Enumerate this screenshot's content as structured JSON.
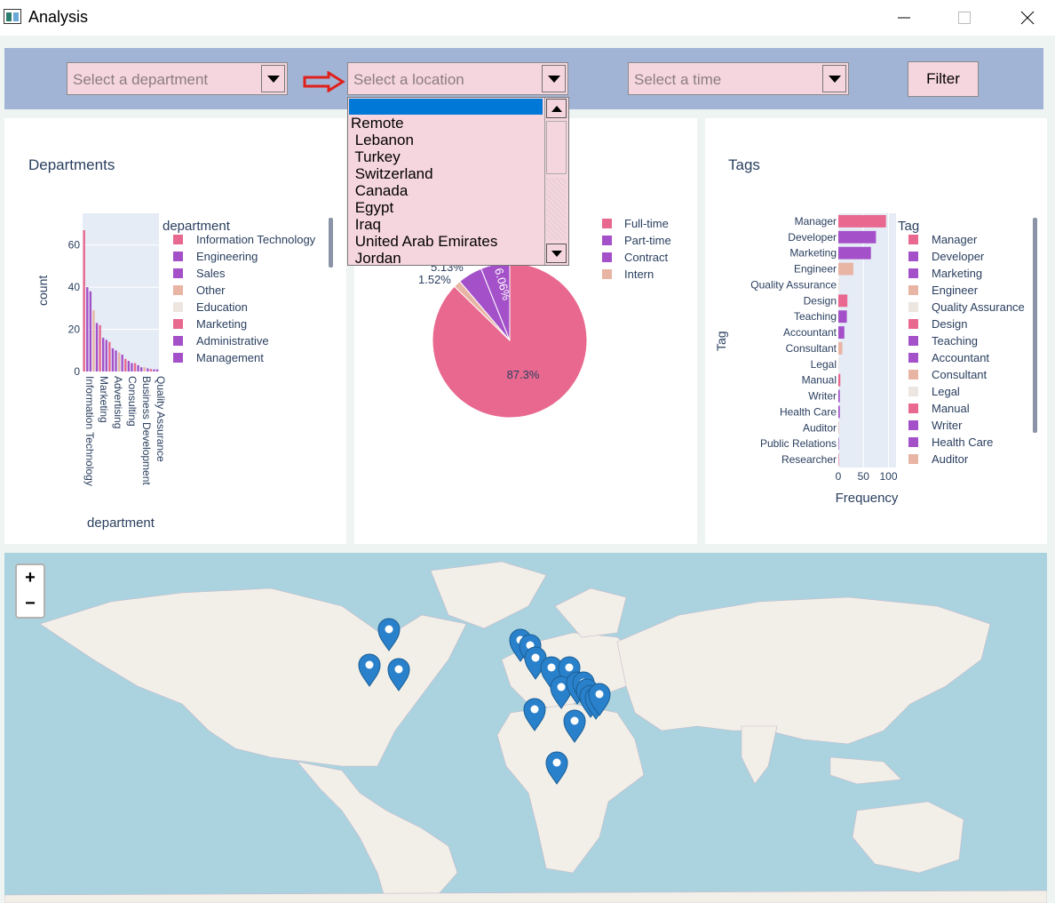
{
  "window": {
    "title": "Analysis"
  },
  "filters": {
    "department_placeholder": "Select a department",
    "location_placeholder": "Select a location",
    "time_placeholder": "Select a time",
    "filter_label": "Filter"
  },
  "location_dropdown": {
    "options": [
      "",
      "Remote",
      " Lebanon",
      " Turkey",
      " Switzerland",
      " Canada",
      " Egypt",
      " Iraq",
      " United Arab Emirates",
      " Jordan"
    ]
  },
  "colors": {
    "pink": "#e8688f",
    "purple": "#a451c9",
    "peach": "#e8b4a4",
    "light": "#ece5e0",
    "filterbar": "#a2b4d6",
    "combo": "#f6d6de",
    "accent_arrow": "#e0201a"
  },
  "departments": {
    "title": "Departments",
    "chart_data": {
      "type": "bar",
      "xlabel": "department",
      "ylabel": "count",
      "ylim": [
        0,
        70
      ],
      "y_ticks": [
        "0",
        "20",
        "40",
        "60"
      ],
      "x_tick_labels": [
        "Information Technology",
        "Marketing",
        "Advertising",
        "Consulting",
        "Business Development",
        "Quality Assurance"
      ],
      "values": [
        67,
        40,
        38,
        29,
        23,
        22,
        16,
        15,
        14,
        11,
        10,
        9,
        8,
        6,
        5,
        4,
        4,
        3,
        2,
        2,
        1.5,
        1.2,
        1,
        1
      ],
      "legend_title": "department",
      "legend": [
        "Information Technology",
        "Engineering",
        "Sales",
        "Other",
        "Education",
        "Marketing",
        "Administrative",
        "Management"
      ]
    }
  },
  "job_types": {
    "chart_data": {
      "type": "pie",
      "labels": [
        "Full-time",
        "Part-time",
        "Contract",
        "Intern"
      ],
      "values": [
        87.3,
        6.06,
        5.13,
        1.52
      ],
      "slice_labels": [
        "87.3%",
        "6.06%",
        "5.13%",
        "1.52%"
      ],
      "legend": [
        "Full-time",
        "Part-time",
        "Contract",
        "Intern"
      ]
    }
  },
  "tags": {
    "title": "Tags",
    "chart_data": {
      "type": "bar",
      "orientation": "horizontal",
      "xlabel": "Frequency",
      "ylabel": "Tag",
      "xlim": [
        0,
        115
      ],
      "x_ticks": [
        "0",
        "50",
        "100"
      ],
      "categories": [
        "Manager",
        "Developer",
        "Marketing",
        "Engineer",
        "Quality Assurance",
        "Design",
        "Teaching",
        "Accountant",
        "Consultant",
        "Legal",
        "Manual",
        "Writer",
        "Health Care",
        "Auditor",
        "Public Relations",
        "Researcher"
      ],
      "values": [
        95,
        75,
        65,
        30,
        3,
        18,
        17,
        12,
        8,
        2,
        4,
        3,
        3,
        1,
        1,
        1
      ],
      "legend_title": "Tag",
      "legend": [
        "Manager",
        "Developer",
        "Marketing",
        "Engineer",
        "Quality Assurance",
        "Design",
        "Teaching",
        "Accountant",
        "Consultant",
        "Legal",
        "Manual",
        "Writer",
        "Health Care",
        "Auditor"
      ]
    }
  },
  "map": {
    "zoom_in": "+",
    "zoom_out": "−"
  }
}
